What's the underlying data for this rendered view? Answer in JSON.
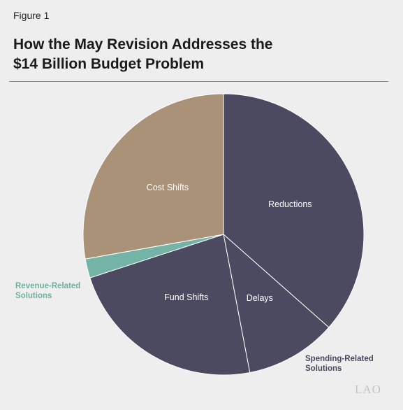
{
  "figure_label": "Figure 1",
  "title_line1": "How the May Revision Addresses the",
  "title_line2": "$14 Billion Budget Problem",
  "logo": "LAO",
  "colors": {
    "spending": "#4c4a60",
    "cost_shifts": "#a99277",
    "revenue": "#73b4a6",
    "revenue_label": "#6faea0",
    "spending_label": "#4c4a60"
  },
  "chart_data": {
    "type": "pie",
    "title": "How the May Revision Addresses the $14 Billion Budget Problem",
    "slices": [
      {
        "label": "Reductions",
        "value": 36.5,
        "group": "spending"
      },
      {
        "label": "Delays",
        "value": 10.5,
        "group": "spending"
      },
      {
        "label": "Fund Shifts",
        "value": 23.0,
        "group": "spending"
      },
      {
        "label": "",
        "value": 2.2,
        "group": "revenue"
      },
      {
        "label": "Cost Shifts",
        "value": 27.8,
        "group": "cost_shifts"
      }
    ],
    "groups": {
      "spending": {
        "line1": "Spending-Related",
        "line2": "Solutions"
      },
      "revenue": {
        "line1": "Revenue-Related",
        "line2": "Solutions"
      }
    },
    "start_angle": "top",
    "direction": "clockwise"
  }
}
